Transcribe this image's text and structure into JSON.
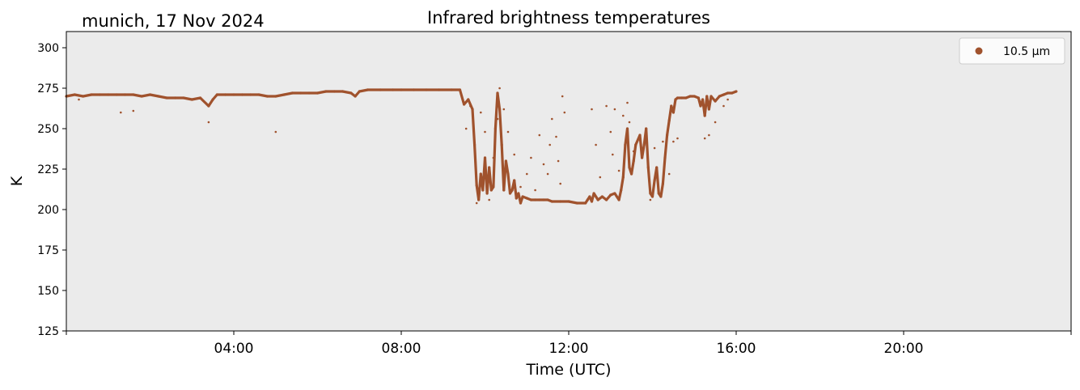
{
  "chart_data": {
    "type": "scatter",
    "title": "Infrared brightness temperatures",
    "subtitle": "munich, 17 Nov 2024",
    "xlabel": "Time (UTC)",
    "ylabel": "K",
    "x_unit": "hours UTC",
    "xlim": [
      0,
      24
    ],
    "ylim": [
      125,
      310
    ],
    "y_ticks": [
      125,
      150,
      175,
      200,
      225,
      250,
      275,
      300
    ],
    "x_ticks": [
      {
        "value": 4,
        "label": "04:00"
      },
      {
        "value": 8,
        "label": "08:00"
      },
      {
        "value": 12,
        "label": "12:00"
      },
      {
        "value": 16,
        "label": "16:00"
      },
      {
        "value": 20,
        "label": "20:00"
      }
    ],
    "x_minor_ticks": [
      0,
      24
    ],
    "grid": false,
    "background_color": "#ebebeb",
    "legend_position": "top-right",
    "series": [
      {
        "name": "10.5 µm",
        "color": "#a0522d",
        "trace": [
          [
            0.0,
            270
          ],
          [
            0.2,
            271
          ],
          [
            0.4,
            270
          ],
          [
            0.6,
            271
          ],
          [
            0.8,
            271
          ],
          [
            1.0,
            271
          ],
          [
            1.2,
            271
          ],
          [
            1.4,
            271
          ],
          [
            1.6,
            271
          ],
          [
            1.8,
            270
          ],
          [
            2.0,
            271
          ],
          [
            2.2,
            270
          ],
          [
            2.4,
            269
          ],
          [
            2.6,
            269
          ],
          [
            2.8,
            269
          ],
          [
            3.0,
            268
          ],
          [
            3.2,
            269
          ],
          [
            3.4,
            264
          ],
          [
            3.5,
            268
          ],
          [
            3.6,
            271
          ],
          [
            3.8,
            271
          ],
          [
            4.0,
            271
          ],
          [
            4.2,
            271
          ],
          [
            4.4,
            271
          ],
          [
            4.6,
            271
          ],
          [
            4.8,
            270
          ],
          [
            5.0,
            270
          ],
          [
            5.2,
            271
          ],
          [
            5.4,
            272
          ],
          [
            5.6,
            272
          ],
          [
            5.8,
            272
          ],
          [
            6.0,
            272
          ],
          [
            6.2,
            273
          ],
          [
            6.4,
            273
          ],
          [
            6.6,
            273
          ],
          [
            6.8,
            272
          ],
          [
            6.9,
            270
          ],
          [
            7.0,
            273
          ],
          [
            7.2,
            274
          ],
          [
            7.5,
            274
          ],
          [
            7.8,
            274
          ],
          [
            8.0,
            274
          ],
          [
            8.3,
            274
          ],
          [
            8.6,
            274
          ],
          [
            8.9,
            274
          ],
          [
            9.2,
            274
          ],
          [
            9.4,
            274
          ],
          [
            9.5,
            265
          ],
          [
            9.6,
            268
          ],
          [
            9.7,
            262
          ],
          [
            9.75,
            240
          ],
          [
            9.8,
            215
          ],
          [
            9.85,
            206
          ],
          [
            9.9,
            222
          ],
          [
            9.95,
            212
          ],
          [
            10.0,
            232
          ],
          [
            10.05,
            210
          ],
          [
            10.1,
            226
          ],
          [
            10.15,
            212
          ],
          [
            10.2,
            214
          ],
          [
            10.25,
            250
          ],
          [
            10.3,
            272
          ],
          [
            10.35,
            262
          ],
          [
            10.4,
            240
          ],
          [
            10.45,
            212
          ],
          [
            10.5,
            230
          ],
          [
            10.55,
            222
          ],
          [
            10.6,
            210
          ],
          [
            10.65,
            212
          ],
          [
            10.7,
            218
          ],
          [
            10.75,
            207
          ],
          [
            10.8,
            210
          ],
          [
            10.85,
            204
          ],
          [
            10.9,
            208
          ],
          [
            11.0,
            207
          ],
          [
            11.1,
            206
          ],
          [
            11.2,
            206
          ],
          [
            11.3,
            206
          ],
          [
            11.4,
            206
          ],
          [
            11.5,
            206
          ],
          [
            11.6,
            205
          ],
          [
            11.8,
            205
          ],
          [
            12.0,
            205
          ],
          [
            12.2,
            204
          ],
          [
            12.4,
            204
          ],
          [
            12.45,
            206
          ],
          [
            12.5,
            208
          ],
          [
            12.55,
            205
          ],
          [
            12.6,
            210
          ],
          [
            12.7,
            206
          ],
          [
            12.8,
            208
          ],
          [
            12.9,
            206
          ],
          [
            13.0,
            209
          ],
          [
            13.1,
            210
          ],
          [
            13.2,
            206
          ],
          [
            13.25,
            212
          ],
          [
            13.3,
            220
          ],
          [
            13.35,
            240
          ],
          [
            13.4,
            250
          ],
          [
            13.45,
            226
          ],
          [
            13.5,
            222
          ],
          [
            13.55,
            230
          ],
          [
            13.6,
            240
          ],
          [
            13.7,
            246
          ],
          [
            13.75,
            232
          ],
          [
            13.8,
            240
          ],
          [
            13.85,
            250
          ],
          [
            13.9,
            226
          ],
          [
            13.95,
            210
          ],
          [
            14.0,
            208
          ],
          [
            14.05,
            218
          ],
          [
            14.1,
            226
          ],
          [
            14.15,
            210
          ],
          [
            14.2,
            208
          ],
          [
            14.25,
            216
          ],
          [
            14.3,
            232
          ],
          [
            14.35,
            246
          ],
          [
            14.4,
            255
          ],
          [
            14.45,
            264
          ],
          [
            14.5,
            260
          ],
          [
            14.55,
            268
          ],
          [
            14.6,
            269
          ],
          [
            14.7,
            269
          ],
          [
            14.8,
            269
          ],
          [
            14.9,
            270
          ],
          [
            15.0,
            270
          ],
          [
            15.1,
            269
          ],
          [
            15.15,
            264
          ],
          [
            15.2,
            268
          ],
          [
            15.25,
            258
          ],
          [
            15.3,
            270
          ],
          [
            15.35,
            262
          ],
          [
            15.4,
            270
          ],
          [
            15.5,
            267
          ],
          [
            15.6,
            270
          ],
          [
            15.7,
            271
          ],
          [
            15.8,
            272
          ],
          [
            15.9,
            272
          ],
          [
            16.0,
            273
          ]
        ],
        "scatter": [
          [
            0.3,
            268
          ],
          [
            1.3,
            260
          ],
          [
            1.6,
            261
          ],
          [
            3.4,
            254
          ],
          [
            5.0,
            248
          ],
          [
            9.55,
            250
          ],
          [
            9.65,
            264
          ],
          [
            9.8,
            204
          ],
          [
            9.9,
            260
          ],
          [
            10.0,
            248
          ],
          [
            10.1,
            206
          ],
          [
            10.2,
            232
          ],
          [
            10.3,
            256
          ],
          [
            10.35,
            275
          ],
          [
            10.45,
            262
          ],
          [
            10.55,
            248
          ],
          [
            10.7,
            234
          ],
          [
            10.85,
            214
          ],
          [
            11.0,
            222
          ],
          [
            11.1,
            232
          ],
          [
            11.2,
            212
          ],
          [
            11.3,
            246
          ],
          [
            11.4,
            228
          ],
          [
            11.5,
            222
          ],
          [
            11.55,
            240
          ],
          [
            11.6,
            256
          ],
          [
            11.7,
            245
          ],
          [
            11.75,
            230
          ],
          [
            11.8,
            216
          ],
          [
            11.85,
            270
          ],
          [
            11.9,
            260
          ],
          [
            12.55,
            262
          ],
          [
            12.65,
            240
          ],
          [
            12.75,
            220
          ],
          [
            12.9,
            264
          ],
          [
            13.0,
            248
          ],
          [
            13.05,
            234
          ],
          [
            13.1,
            262
          ],
          [
            13.2,
            224
          ],
          [
            13.3,
            258
          ],
          [
            13.4,
            266
          ],
          [
            13.45,
            254
          ],
          [
            13.55,
            236
          ],
          [
            13.95,
            206
          ],
          [
            14.05,
            238
          ],
          [
            14.25,
            242
          ],
          [
            14.4,
            222
          ],
          [
            14.5,
            242
          ],
          [
            14.6,
            244
          ],
          [
            15.25,
            244
          ],
          [
            15.35,
            246
          ],
          [
            15.5,
            254
          ],
          [
            15.7,
            264
          ],
          [
            15.8,
            268
          ]
        ]
      }
    ]
  }
}
